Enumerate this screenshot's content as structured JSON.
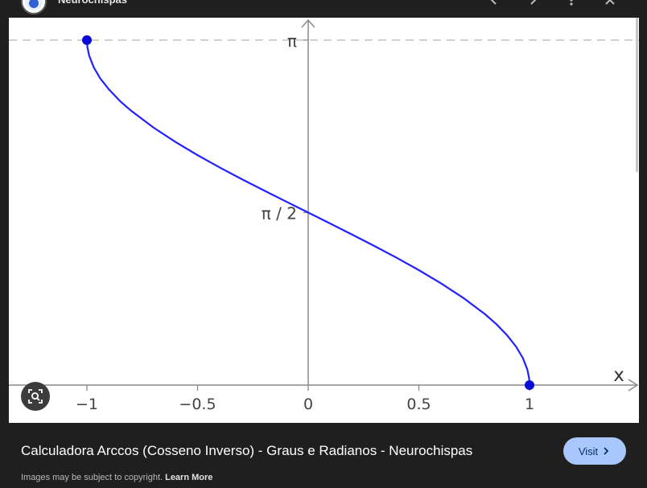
{
  "header": {
    "site_name": "Neurochispas",
    "logo_icon": "neurochispas-logo-icon"
  },
  "toolbar": {
    "prev_icon": "chevron-left-icon",
    "next_icon": "chevron-right-icon",
    "more_icon": "more-vert-icon",
    "close_icon": "close-icon"
  },
  "chart_data": {
    "type": "line",
    "function": "arccos(x)",
    "x_ticks": [
      "−1",
      "−0.5",
      "0",
      "0.5",
      "1"
    ],
    "x_tick_values": [
      -1,
      -0.5,
      0,
      0.5,
      1
    ],
    "y_ticks": [
      "π / 2",
      "π"
    ],
    "y_tick_values": [
      1.5708,
      3.1416
    ],
    "xlabel": "x",
    "ylabel": "",
    "xlim": [
      -1.1,
      1.2
    ],
    "ylim": [
      0,
      3.35
    ],
    "series": [
      {
        "x": [
          -1,
          -0.998,
          -0.99,
          -0.97,
          -0.94,
          -0.9,
          -0.85,
          -0.8,
          -0.7,
          -0.6,
          -0.5,
          -0.4,
          -0.3,
          -0.2,
          -0.1,
          0,
          0.1,
          0.2,
          0.3,
          0.4,
          0.5,
          0.6,
          0.7,
          0.8,
          0.85,
          0.9,
          0.94,
          0.97,
          0.99,
          0.998,
          1
        ],
        "y": [
          3.1416,
          3.078,
          3.0,
          2.897,
          2.793,
          2.691,
          2.585,
          2.498,
          2.346,
          2.214,
          2.094,
          1.982,
          1.875,
          1.772,
          1.671,
          1.571,
          1.471,
          1.369,
          1.266,
          1.159,
          1.047,
          0.927,
          0.795,
          0.644,
          0.555,
          0.451,
          0.348,
          0.245,
          0.141,
          0.063,
          0
        ]
      }
    ],
    "endpoints": [
      {
        "x": -1,
        "y": 3.1416
      },
      {
        "x": 1,
        "y": 0
      }
    ],
    "reference_line": {
      "y": 3.1416,
      "style": "dashed"
    },
    "colors": {
      "curve": "#2121ff",
      "points": "#0a0ad8",
      "axis": "#8a8a8a",
      "dash": "#b5b5b5"
    }
  },
  "lens": {
    "icon": "lens-search-icon"
  },
  "caption": {
    "title": "Calculadora Arccos (Cosseno Inverso) - Graus e Radianos - Neurochispas",
    "visit_label": "Visit",
    "visit_icon": "chevron-right-icon",
    "copyright_text": "Images may be subject to copyright.",
    "learn_more": "Learn More"
  },
  "colors": {
    "background": "#1f1f1f",
    "visit_bg": "#a8c7fa",
    "visit_text": "#062e6f"
  }
}
